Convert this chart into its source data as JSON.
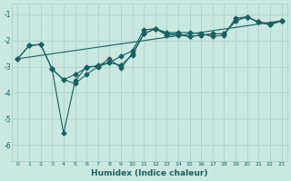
{
  "xlabel": "Humidex (Indice chaleur)",
  "ylabel": "",
  "bg_color": "#c8e8e0",
  "grid_color": "#b0d4cc",
  "line_color": "#1a6060",
  "xlim": [
    -0.5,
    23.5
  ],
  "ylim": [
    -6.6,
    -0.6
  ],
  "yticks": [
    -6,
    -5,
    -4,
    -3,
    -2,
    -1
  ],
  "xticks": [
    0,
    1,
    2,
    3,
    4,
    5,
    6,
    7,
    8,
    9,
    10,
    11,
    12,
    13,
    14,
    15,
    16,
    17,
    18,
    19,
    20,
    21,
    22,
    23
  ],
  "series": [
    {
      "x": [
        0,
        1,
        2,
        3,
        4,
        5,
        6,
        7,
        8,
        9,
        10,
        11,
        12,
        13,
        14,
        15,
        16,
        17,
        18,
        19,
        20,
        21,
        22,
        23
      ],
      "y": [
        -2.7,
        -2.2,
        -2.15,
        -3.1,
        -3.5,
        -3.3,
        -3.05,
        -2.95,
        -2.85,
        -2.6,
        -2.4,
        -1.6,
        -1.55,
        -1.7,
        -1.7,
        -1.7,
        -1.75,
        -1.85,
        -1.8,
        -1.15,
        -1.1,
        -1.3,
        -1.35,
        -1.25
      ],
      "marker": "D",
      "markersize": 2.5
    },
    {
      "x": [
        0,
        1,
        2,
        3,
        4,
        5,
        6,
        7,
        8,
        9,
        10,
        11,
        12,
        13,
        14,
        15,
        16,
        17,
        18,
        19,
        20,
        21,
        22,
        23
      ],
      "y": [
        -2.7,
        -2.2,
        -2.15,
        -3.1,
        -3.5,
        -3.65,
        -3.3,
        -3.0,
        -2.85,
        -2.95,
        -2.55,
        -1.75,
        -1.55,
        -1.75,
        -1.75,
        -1.85,
        -1.8,
        -1.75,
        -1.75,
        -1.25,
        -1.1,
        -1.3,
        -1.4,
        -1.25
      ],
      "marker": "D",
      "markersize": 2.5
    },
    {
      "x": [
        3,
        4,
        5,
        6,
        7,
        8,
        9,
        10,
        11,
        12,
        13,
        14,
        15,
        16,
        17,
        18,
        19,
        20,
        21,
        22,
        23
      ],
      "y": [
        -3.1,
        -5.55,
        -3.55,
        -3.0,
        -3.0,
        -2.7,
        -3.05,
        -2.5,
        -1.75,
        -1.55,
        -1.8,
        -1.8,
        -1.85,
        -1.8,
        -1.75,
        -1.75,
        -1.25,
        -1.1,
        -1.3,
        -1.4,
        -1.25
      ],
      "marker": "D",
      "markersize": 2.5
    },
    {
      "x": [
        0,
        23
      ],
      "y": [
        -2.7,
        -1.25
      ],
      "marker": null,
      "markersize": 0
    }
  ]
}
